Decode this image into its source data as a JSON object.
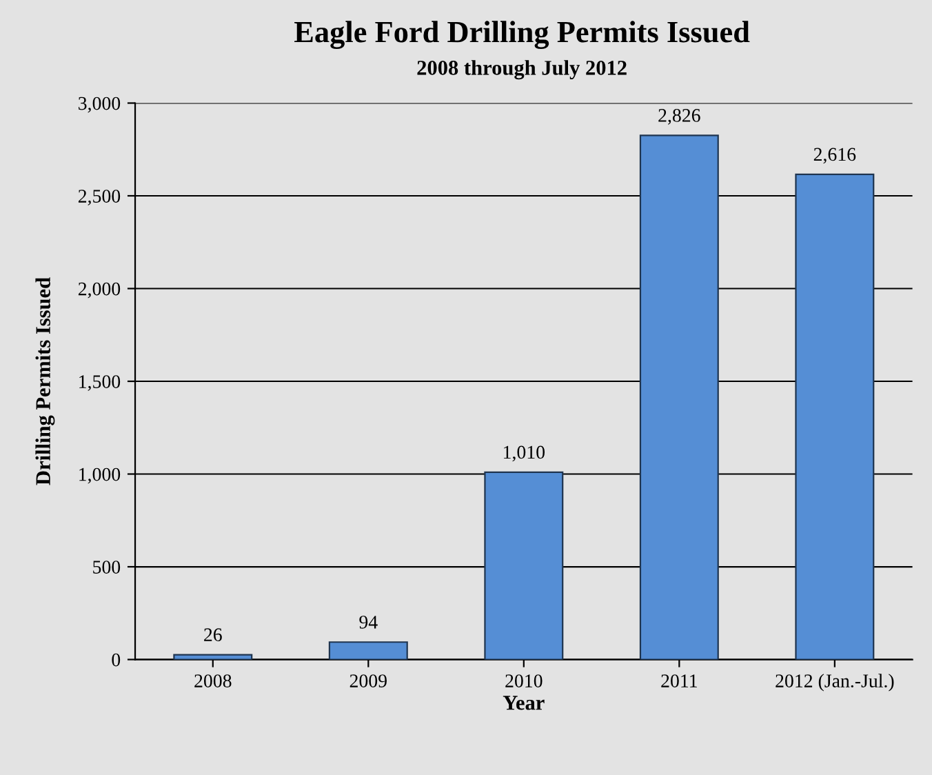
{
  "chart_data": {
    "type": "bar",
    "title": "Eagle Ford Drilling Permits Issued",
    "subtitle": "2008 through July 2012",
    "categories": [
      "2008",
      "2009",
      "2010",
      "2011",
      "2012 (Jan.-Jul.)"
    ],
    "values": [
      26,
      94,
      1010,
      2826,
      2616
    ],
    "value_labels": [
      "26",
      "94",
      "1,010",
      "2,826",
      "2,616"
    ],
    "color": "#558ed5",
    "xlabel": "Year",
    "ylabel": "Drilling Permits Issued",
    "ylim": [
      0,
      3000
    ],
    "yticks": [
      0,
      500,
      {
        "value": 1000,
        "label": "1,000"
      },
      {
        "value": 1500,
        "label": "1,500"
      },
      {
        "value": 2000,
        "label": "2,000"
      },
      {
        "value": 2500,
        "label": "2,500"
      },
      {
        "value": 3000,
        "label": "3,000"
      }
    ],
    "grid": "y",
    "legend": false
  }
}
